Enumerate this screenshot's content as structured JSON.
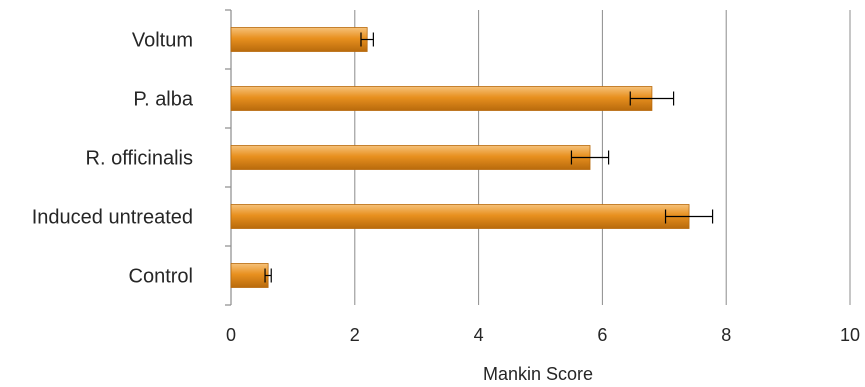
{
  "chart_data": {
    "type": "bar",
    "orientation": "horizontal",
    "categories": [
      "Voltum",
      "P. alba",
      "R. officinalis",
      "Induced untreated",
      "Control"
    ],
    "values": [
      2.2,
      6.8,
      5.8,
      7.4,
      0.6
    ],
    "errors": [
      0.1,
      0.35,
      0.3,
      0.38,
      0.05
    ],
    "xlabel": "Mankin Score",
    "ylabel": "",
    "xlim": [
      0,
      10
    ],
    "xticks": [
      0,
      2,
      4,
      6,
      8,
      10
    ],
    "grid": "vertical",
    "legend": "none",
    "colors": {
      "bar_light": "#f6c27a",
      "bar": "#e8901f",
      "bar_dark": "#b86a0c",
      "grid": "#8c8c8c",
      "axis": "#8c8c8c",
      "error_bar": "#000000"
    }
  }
}
